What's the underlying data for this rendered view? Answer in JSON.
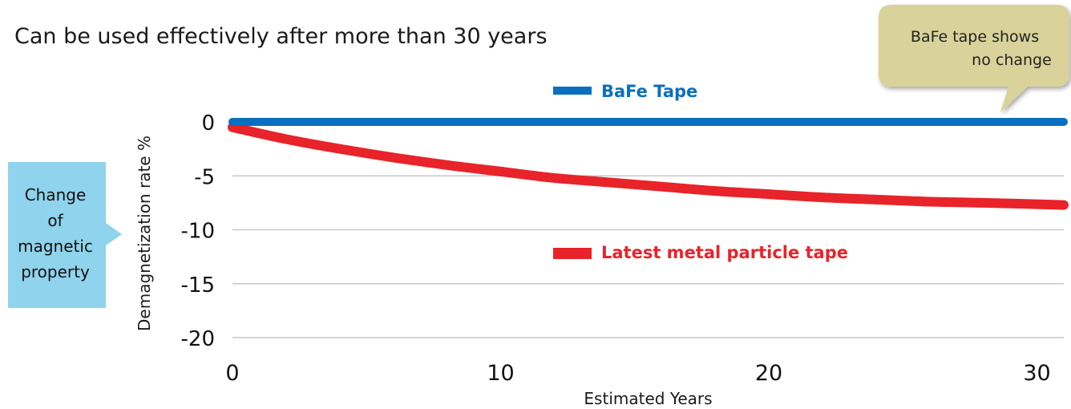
{
  "subtitle": "Can be used effectively after more than 30 years",
  "callouts": {
    "right_bubble": [
      "BaFe tape shows",
      "no change"
    ],
    "left_box": [
      "Change",
      "of",
      "magnetic",
      "property"
    ]
  },
  "colors": {
    "bafe": "#0a6fbe",
    "metal": "#e8232a",
    "bubble_fill": "#d9d29a",
    "box_fill": "#8fd3ec",
    "grid": "#c8c8c8"
  },
  "chart_data": {
    "type": "line",
    "xlabel": "Estimated Years",
    "ylabel": "Demagnetization rate %",
    "xlim": [
      0,
      31
    ],
    "ylim": [
      -20,
      0
    ],
    "xticks": [
      0,
      10,
      20,
      30
    ],
    "yticks": [
      0,
      -5,
      -10,
      -15,
      -20
    ],
    "grid": "horizontal",
    "legend_position": "inline",
    "series": [
      {
        "name": "BaFe Tape",
        "color": "#0a6fbe",
        "x": [
          0,
          5,
          10,
          15,
          20,
          25,
          31
        ],
        "y": [
          0,
          0,
          0,
          0,
          0,
          0,
          0
        ]
      },
      {
        "name": "Latest metal particle tape",
        "color": "#e8232a",
        "x": [
          0,
          2,
          4,
          6,
          8,
          10,
          12,
          14,
          16,
          18,
          20,
          22,
          24,
          26,
          28,
          31
        ],
        "y": [
          -0.5,
          -1.6,
          -2.5,
          -3.3,
          -4.0,
          -4.6,
          -5.2,
          -5.6,
          -6.0,
          -6.4,
          -6.7,
          -7.0,
          -7.2,
          -7.4,
          -7.5,
          -7.7
        ]
      }
    ]
  }
}
